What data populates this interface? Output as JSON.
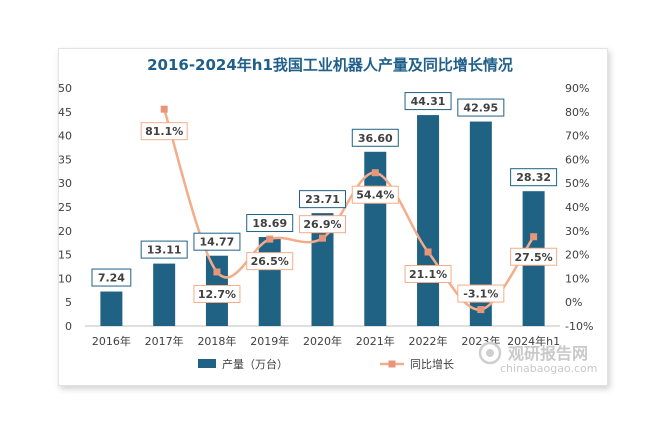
{
  "chart_data": {
    "type": "bar+line",
    "title": "2016-2024年h1我国工业机器人产量及同比增长情况",
    "categories": [
      "2016年",
      "2017年",
      "2018年",
      "2019年",
      "2020年",
      "2021年",
      "2022年",
      "2023年",
      "2024年h1"
    ],
    "series": [
      {
        "name": "产量（万台）",
        "type": "bar",
        "axis": "left",
        "values": [
          7.24,
          13.11,
          14.77,
          18.69,
          23.71,
          36.6,
          44.31,
          42.95,
          28.32
        ],
        "labels": [
          "7.24",
          "13.11",
          "14.77",
          "18.69",
          "23.71",
          "36.60",
          "44.31",
          "42.95",
          "28.32"
        ]
      },
      {
        "name": "同比增长",
        "type": "line",
        "axis": "right",
        "values": [
          null,
          81.1,
          12.7,
          26.5,
          26.9,
          54.4,
          21.1,
          -3.1,
          27.5
        ],
        "labels": [
          "",
          "81.1%",
          "12.7%",
          "26.5%",
          "26.9%",
          "54.4%",
          "21.1%",
          "-3.1%",
          "27.5%"
        ]
      }
    ],
    "y_left": {
      "min": 0,
      "max": 50,
      "step": 5,
      "ticks": [
        "0",
        "5",
        "10",
        "15",
        "20",
        "25",
        "30",
        "35",
        "40",
        "45",
        "50"
      ]
    },
    "y_right": {
      "min": -10,
      "max": 90,
      "step": 10,
      "ticks": [
        "-10%",
        "0%",
        "10%",
        "20%",
        "30%",
        "40%",
        "50%",
        "60%",
        "70%",
        "80%",
        "90%"
      ]
    },
    "legend_position": "bottom",
    "grid": false
  },
  "colors": {
    "bar": "#1f6284",
    "line": "#f4ad8a",
    "marker": "#e8967a",
    "title": "#1f5f8a",
    "text": "#404040"
  },
  "watermark": {
    "cn": "观研报告网",
    "en": "chinabaogao.com"
  }
}
